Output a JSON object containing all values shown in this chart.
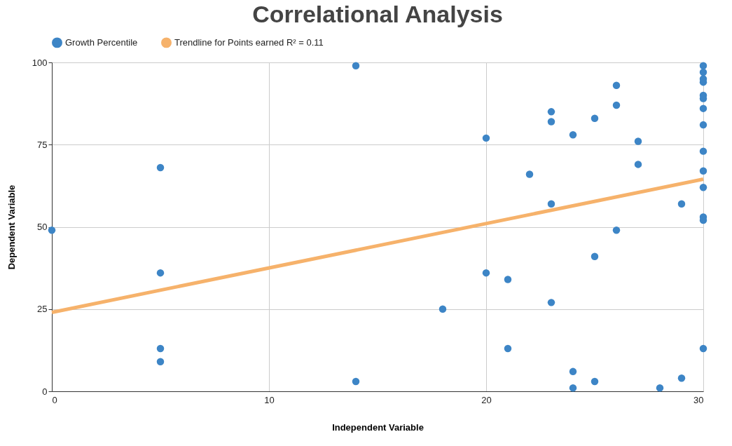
{
  "chart_data": {
    "type": "scatter",
    "title": "Correlational Analysis",
    "xlabel": "Independent Variable",
    "ylabel": "Dependent Variable",
    "xlim": [
      0,
      30
    ],
    "ylim": [
      0,
      100
    ],
    "xticks": [
      0,
      10,
      20,
      30
    ],
    "yticks": [
      0,
      25,
      50,
      75,
      100
    ],
    "grid": true,
    "legend": "top",
    "series": [
      {
        "name": "Growth Percentile",
        "color": "#3d85c6",
        "marker": "circle",
        "x": [
          0,
          5,
          5,
          5,
          5,
          14,
          14,
          18,
          20,
          20,
          21,
          21,
          22,
          23,
          23,
          23,
          23,
          24,
          24,
          24,
          25,
          25,
          25,
          26,
          26,
          26,
          27,
          27,
          28,
          29,
          29,
          30,
          30,
          30,
          30,
          30,
          30,
          30,
          30,
          30,
          30,
          30,
          30,
          30,
          30
        ],
        "values": [
          49,
          68,
          36,
          13,
          9,
          99,
          3,
          25,
          77,
          36,
          34,
          13,
          66,
          85,
          82,
          57,
          27,
          78,
          6,
          1,
          83,
          41,
          3,
          93,
          87,
          49,
          76,
          69,
          1,
          57,
          4,
          99,
          97,
          95,
          94,
          90,
          89,
          86,
          81,
          73,
          67,
          62,
          53,
          52,
          13
        ]
      },
      {
        "name": "Trendline for Points earned R² = 0.11",
        "color": "#f6b26b",
        "type": "line",
        "line_style": "solid",
        "x": [
          0,
          30
        ],
        "values": [
          24,
          64.5
        ]
      }
    ]
  }
}
